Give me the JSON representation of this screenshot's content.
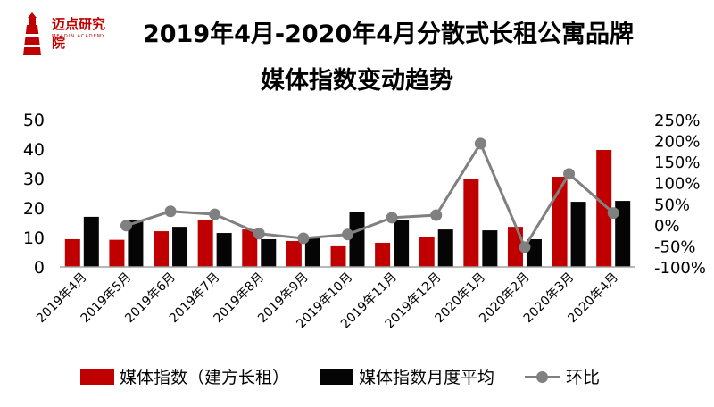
{
  "logo": {
    "text": "迈点研究院",
    "subtext": "MEADIN ACADEMY"
  },
  "title_line1": "2019年4月-2020年4月分散式长租公寓品牌",
  "title_line2": "媒体指数变动趋势",
  "colors": {
    "series1": "#c00000",
    "series2": "#050505",
    "series3": "#808080"
  },
  "chart_data": {
    "type": "bar+line",
    "title": "2019年4月-2020年4月分散式长租公寓品牌媒体指数变动趋势",
    "categories": [
      "2019年4月",
      "2019年5月",
      "2019年6月",
      "2019年7月",
      "2019年8月",
      "2019年9月",
      "2019年10月",
      "2019年11月",
      "2019年12月",
      "2020年1月",
      "2020年2月",
      "2020年3月",
      "2020年4月"
    ],
    "series": [
      {
        "name": "媒体指数（建方长租）",
        "type": "bar",
        "axis": "left",
        "values": [
          9.4,
          9.2,
          12.1,
          15.8,
          12.7,
          8.8,
          7.0,
          8.2,
          10.0,
          29.7,
          13.6,
          30.6,
          39.7
        ]
      },
      {
        "name": "媒体指数月度平均",
        "type": "bar",
        "axis": "left",
        "values": [
          17.0,
          16.0,
          13.6,
          11.5,
          9.4,
          10.3,
          18.5,
          16.0,
          12.7,
          12.4,
          9.4,
          22.1,
          22.4
        ]
      },
      {
        "name": "环比",
        "type": "line",
        "axis": "right",
        "values": [
          null,
          -2,
          32,
          25,
          -21,
          -32,
          -23,
          17,
          23,
          193,
          -53,
          121,
          28
        ]
      }
    ],
    "left_axis": {
      "range": [
        0,
        50
      ],
      "ticks": [
        "0",
        "10",
        "20",
        "30",
        "40",
        "50"
      ]
    },
    "right_axis": {
      "range": [
        -100,
        250
      ],
      "ticks": [
        "-100%",
        "-50%",
        "0%",
        "50%",
        "100%",
        "150%",
        "200%",
        "250%"
      ]
    },
    "legend_position": "bottom",
    "grid": false
  }
}
